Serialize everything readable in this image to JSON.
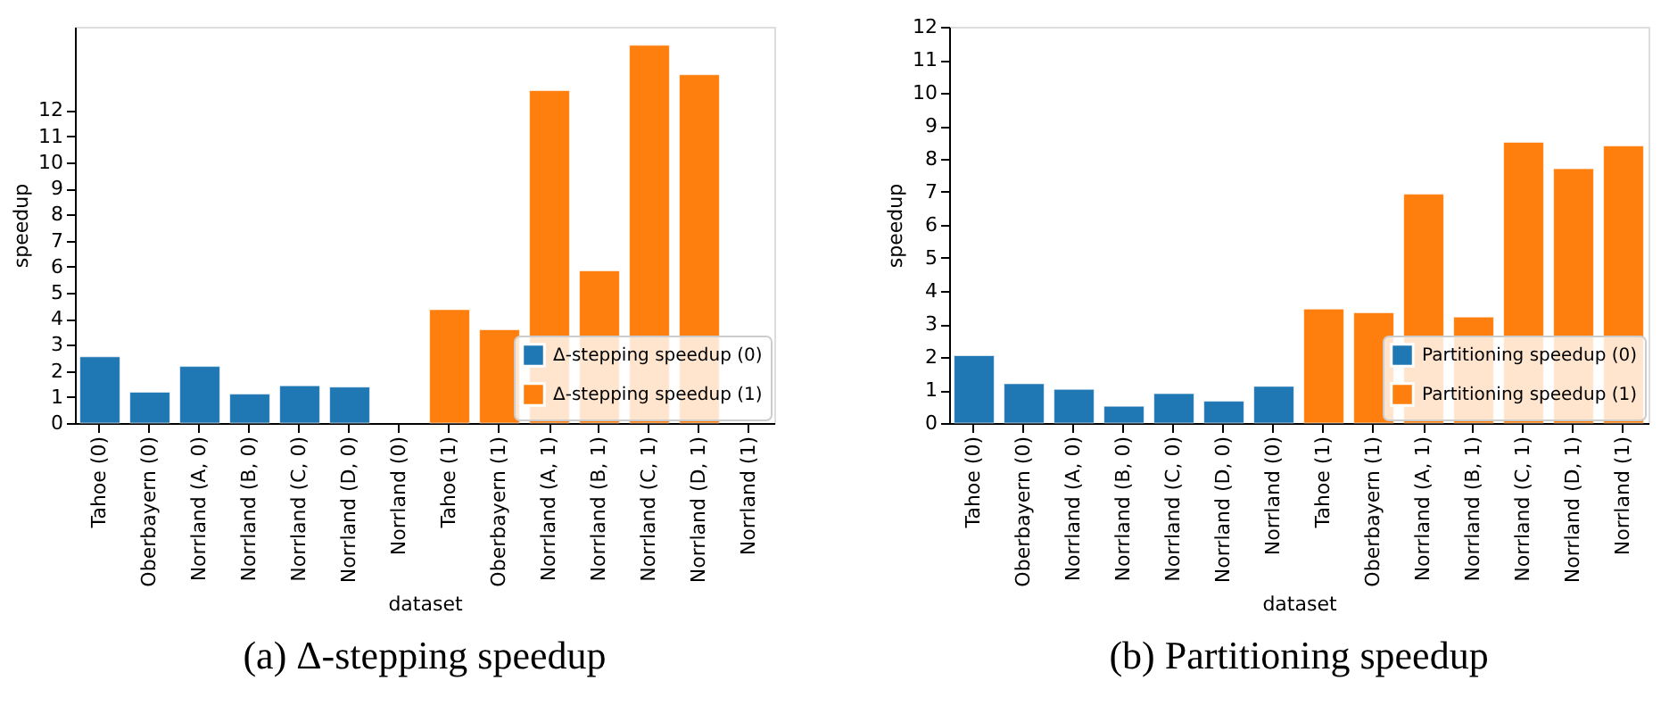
{
  "chart_data": [
    {
      "type": "bar",
      "title": "(a) Δ-stepping speedup",
      "xlabel": "dataset",
      "ylabel": "speedup",
      "categories": [
        "Tahoe (0)",
        "Oberbayern (0)",
        "Norrland (A, 0)",
        "Norrland (B, 0)",
        "Norrland (C, 0)",
        "Norrland (D, 0)",
        "Norrland (0)",
        "Tahoe (1)",
        "Oberbayern (1)",
        "Norrland (A, 1)",
        "Norrland (B, 1)",
        "Norrland (C, 1)",
        "Norrland (D, 1)",
        "Norrland (1)"
      ],
      "series": [
        {
          "name": "Δ-stepping speedup (0)",
          "color": "#1f77b4",
          "values": [
            2.54,
            1.18,
            2.17,
            1.11,
            1.43,
            1.38,
            null,
            null,
            null,
            null,
            null,
            null,
            null,
            null
          ]
        },
        {
          "name": "Δ-stepping speedup (1)",
          "color": "#ff7f0e",
          "values": [
            null,
            null,
            null,
            null,
            null,
            null,
            null,
            4.35,
            3.58,
            12.75,
            5.84,
            14.49,
            13.36,
            null
          ]
        }
      ],
      "ylim": [
        0,
        15.2
      ],
      "yticks": [
        0,
        1,
        2,
        3,
        4,
        5,
        6,
        7,
        8,
        9,
        10,
        11,
        12
      ],
      "grid": false,
      "legend": "bottom right"
    },
    {
      "type": "bar",
      "title": "(b) Partitioning speedup",
      "xlabel": "dataset",
      "ylabel": "speedup",
      "categories": [
        "Tahoe (0)",
        "Oberbayern (0)",
        "Norrland (A, 0)",
        "Norrland (B, 0)",
        "Norrland (C, 0)",
        "Norrland (D, 0)",
        "Norrland (0)",
        "Tahoe (1)",
        "Oberbayern (1)",
        "Norrland (A, 1)",
        "Norrland (B, 1)",
        "Norrland (C, 1)",
        "Norrland (D, 1)",
        "Norrland (1)"
      ],
      "series": [
        {
          "name": "Partitioning speedup (0)",
          "color": "#1f77b4",
          "values": [
            2.04,
            1.19,
            1.02,
            0.51,
            0.89,
            0.66,
            1.11,
            null,
            null,
            null,
            null,
            null,
            null,
            null
          ]
        },
        {
          "name": "Partitioning speedup (1)",
          "color": "#ff7f0e",
          "values": [
            null,
            null,
            null,
            null,
            null,
            null,
            null,
            3.45,
            3.34,
            6.93,
            3.21,
            8.5,
            7.7,
            8.39
          ]
        }
      ],
      "ylim": [
        0,
        12
      ],
      "yticks": [
        0,
        1,
        2,
        3,
        4,
        5,
        6,
        7,
        8,
        9,
        10,
        11,
        12
      ],
      "grid": false,
      "legend": "bottom right"
    }
  ]
}
